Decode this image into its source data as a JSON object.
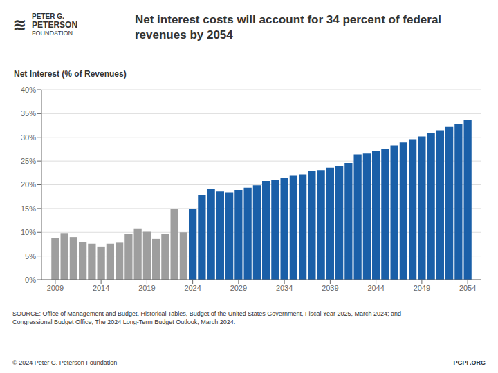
{
  "chart_data": {
    "type": "bar",
    "title": "Net interest costs will account for 34 percent of federal\nrevenues by 2054",
    "ylabel": "Net Interest (% of Revenues)",
    "annotations": [
      "≋",
      "PETER G.",
      "PETERSON",
      "FOUNDATION",
      "SOURCE: Office of Management and Budget, Historical Tables, Budget of the United States Government, Fiscal Year 2025, March 2024; and\nCongressional Budget Office, The 2024 Long-Term Budget Outlook, March 2024.",
      "© 2024 Peter G. Peterson Foundation",
      "PGPF.ORG"
    ],
    "x": [
      2009,
      2010,
      2011,
      2012,
      2013,
      2014,
      2015,
      2016,
      2017,
      2018,
      2019,
      2020,
      2021,
      2022,
      2023,
      2024,
      2025,
      2026,
      2027,
      2028,
      2029,
      2030,
      2031,
      2032,
      2033,
      2034,
      2035,
      2036,
      2037,
      2038,
      2039,
      2040,
      2041,
      2042,
      2043,
      2044,
      2045,
      2046,
      2047,
      2048,
      2049,
      2050,
      2051,
      2052,
      2053,
      2054
    ],
    "values": [
      0.088,
      0.097,
      0.09,
      0.079,
      0.076,
      0.07,
      0.076,
      0.078,
      0.096,
      0.108,
      0.101,
      0.086,
      0.096,
      0.15,
      0.1,
      0.149,
      0.178,
      0.191,
      0.186,
      0.184,
      0.189,
      0.194,
      0.199,
      0.208,
      0.211,
      0.215,
      0.219,
      0.222,
      0.229,
      0.231,
      0.236,
      0.24,
      0.246,
      0.264,
      0.266,
      0.272,
      0.276,
      0.283,
      0.289,
      0.296,
      0.302,
      0.31,
      0.315,
      0.322,
      0.328,
      0.336
    ],
    "colors": [
      "#9E9E9E",
      "#9E9E9E",
      "#9E9E9E",
      "#9E9E9E",
      "#9E9E9E",
      "#9E9E9E",
      "#9E9E9E",
      "#9E9E9E",
      "#9E9E9E",
      "#9E9E9E",
      "#9E9E9E",
      "#9E9E9E",
      "#9E9E9E",
      "#9E9E9E",
      "#9E9E9E",
      "#1A5FA8",
      "#1A5FA8",
      "#1A5FA8",
      "#1A5FA8",
      "#1A5FA8",
      "#1A5FA8",
      "#1A5FA8",
      "#1A5FA8",
      "#1A5FA8",
      "#1A5FA8",
      "#1A5FA8",
      "#1A5FA8",
      "#1A5FA8",
      "#1A5FA8",
      "#1A5FA8",
      "#1A5FA8",
      "#1A5FA8",
      "#1A5FA8",
      "#1A5FA8",
      "#1A5FA8",
      "#1A5FA8",
      "#1A5FA8",
      "#1A5FA8",
      "#1A5FA8",
      "#1A5FA8",
      "#1A5FA8",
      "#1A5FA8",
      "#1A5FA8",
      "#1A5FA8",
      "#1A5FA8",
      "#1A5FA8"
    ],
    "xlim": [
      2007.5,
      2055.5
    ],
    "xticks": [
      2009,
      2014,
      2019,
      2024,
      2029,
      2034,
      2039,
      2044,
      2049,
      2054
    ],
    "ylim": [
      0,
      0.4
    ],
    "yticks": [
      {
        "value": 0,
        "label": "0%"
      },
      {
        "value": 0.05,
        "label": "5%"
      },
      {
        "value": 0.1,
        "label": "10%"
      },
      {
        "value": 0.15,
        "label": "15%"
      },
      {
        "value": 0.2,
        "label": "20%"
      },
      {
        "value": 0.25,
        "label": "25%"
      },
      {
        "value": 0.3,
        "label": "30%"
      },
      {
        "value": 0.35,
        "label": "35%"
      },
      {
        "value": 0.4,
        "label": "40%"
      }
    ],
    "grid": true
  }
}
